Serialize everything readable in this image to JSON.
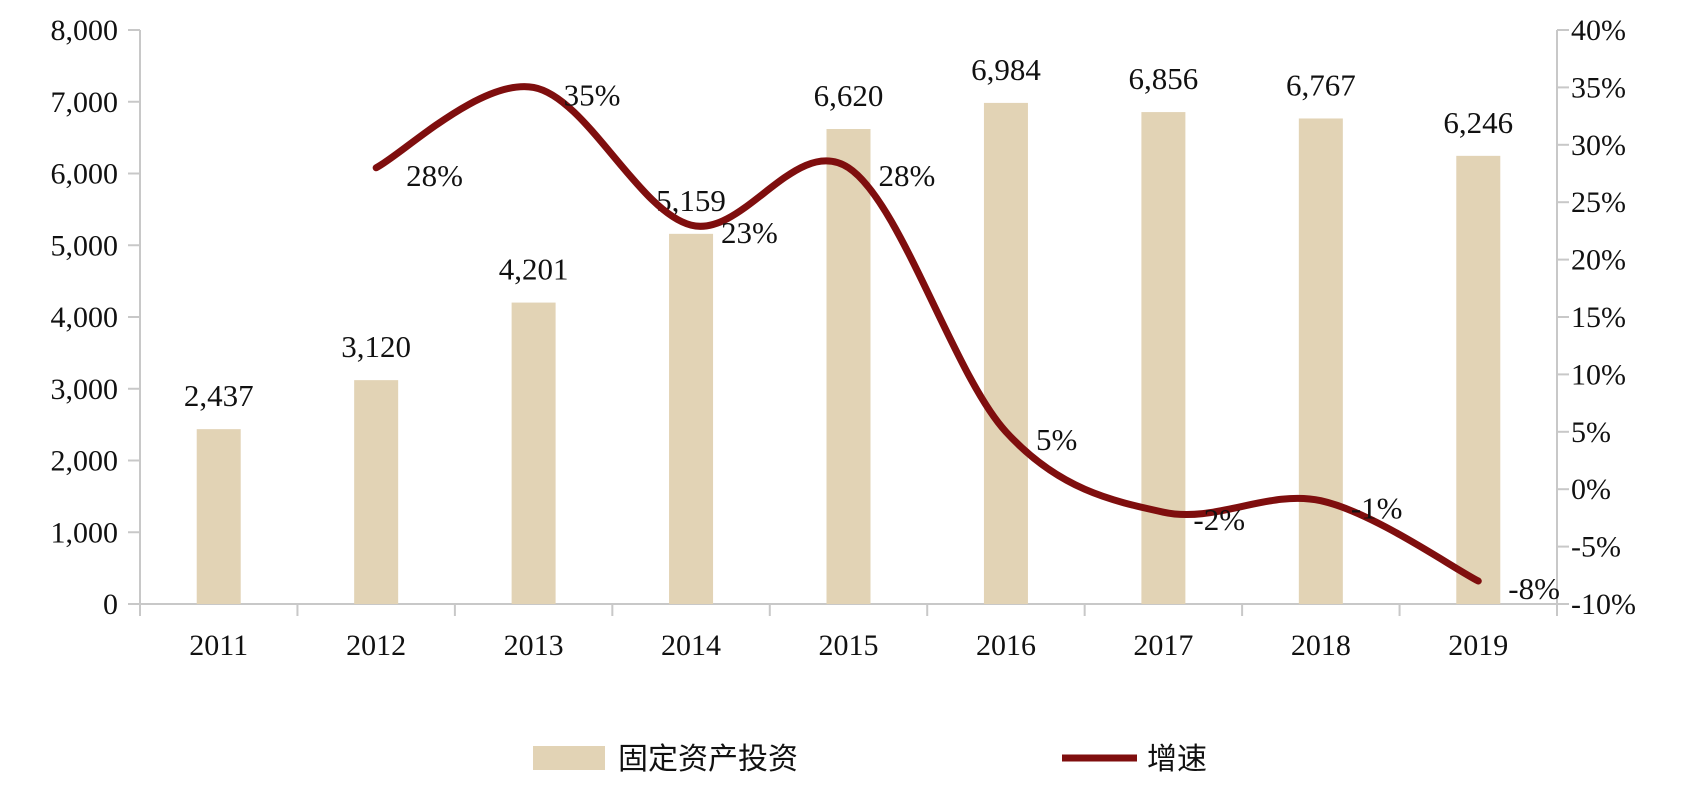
{
  "chart_data": {
    "type": "bar",
    "categories": [
      "2011",
      "2012",
      "2013",
      "2014",
      "2015",
      "2016",
      "2017",
      "2018",
      "2019"
    ],
    "series": [
      {
        "name": "固定资产投资",
        "type": "bar",
        "axis": "left",
        "color": "#e2d3b5",
        "values": [
          2437,
          3120,
          4201,
          5159,
          6620,
          6984,
          6856,
          6767,
          6246
        ],
        "labels": [
          "2,437",
          "3,120",
          "4,201",
          "5,159",
          "6,620",
          "6,984",
          "6,856",
          "6,767",
          "6,246"
        ]
      },
      {
        "name": "增速",
        "type": "line",
        "axis": "right",
        "smooth": true,
        "color": "#7f0e0e",
        "values": [
          null,
          28,
          35,
          23,
          28,
          5,
          -2,
          -1,
          -8
        ],
        "labels": [
          null,
          "28%",
          "35%",
          "23%",
          "28%",
          "5%",
          "-2%",
          "-1%",
          "-8%"
        ]
      }
    ],
    "y_left": {
      "range": [
        0,
        8000
      ],
      "ticks": [
        0,
        1000,
        2000,
        3000,
        4000,
        5000,
        6000,
        7000,
        8000
      ],
      "tick_labels": [
        "0",
        "1,000",
        "2,000",
        "3,000",
        "4,000",
        "5,000",
        "6,000",
        "7,000",
        "8,000"
      ]
    },
    "y_right": {
      "range": [
        -10,
        40
      ],
      "ticks": [
        -10,
        -5,
        0,
        5,
        10,
        15,
        20,
        25,
        30,
        35,
        40
      ],
      "tick_labels": [
        "-10%",
        "-5%",
        "0%",
        "5%",
        "10%",
        "15%",
        "20%",
        "25%",
        "30%",
        "35%",
        "40%"
      ]
    },
    "grid": false,
    "legend": {
      "position": "bottom"
    }
  }
}
